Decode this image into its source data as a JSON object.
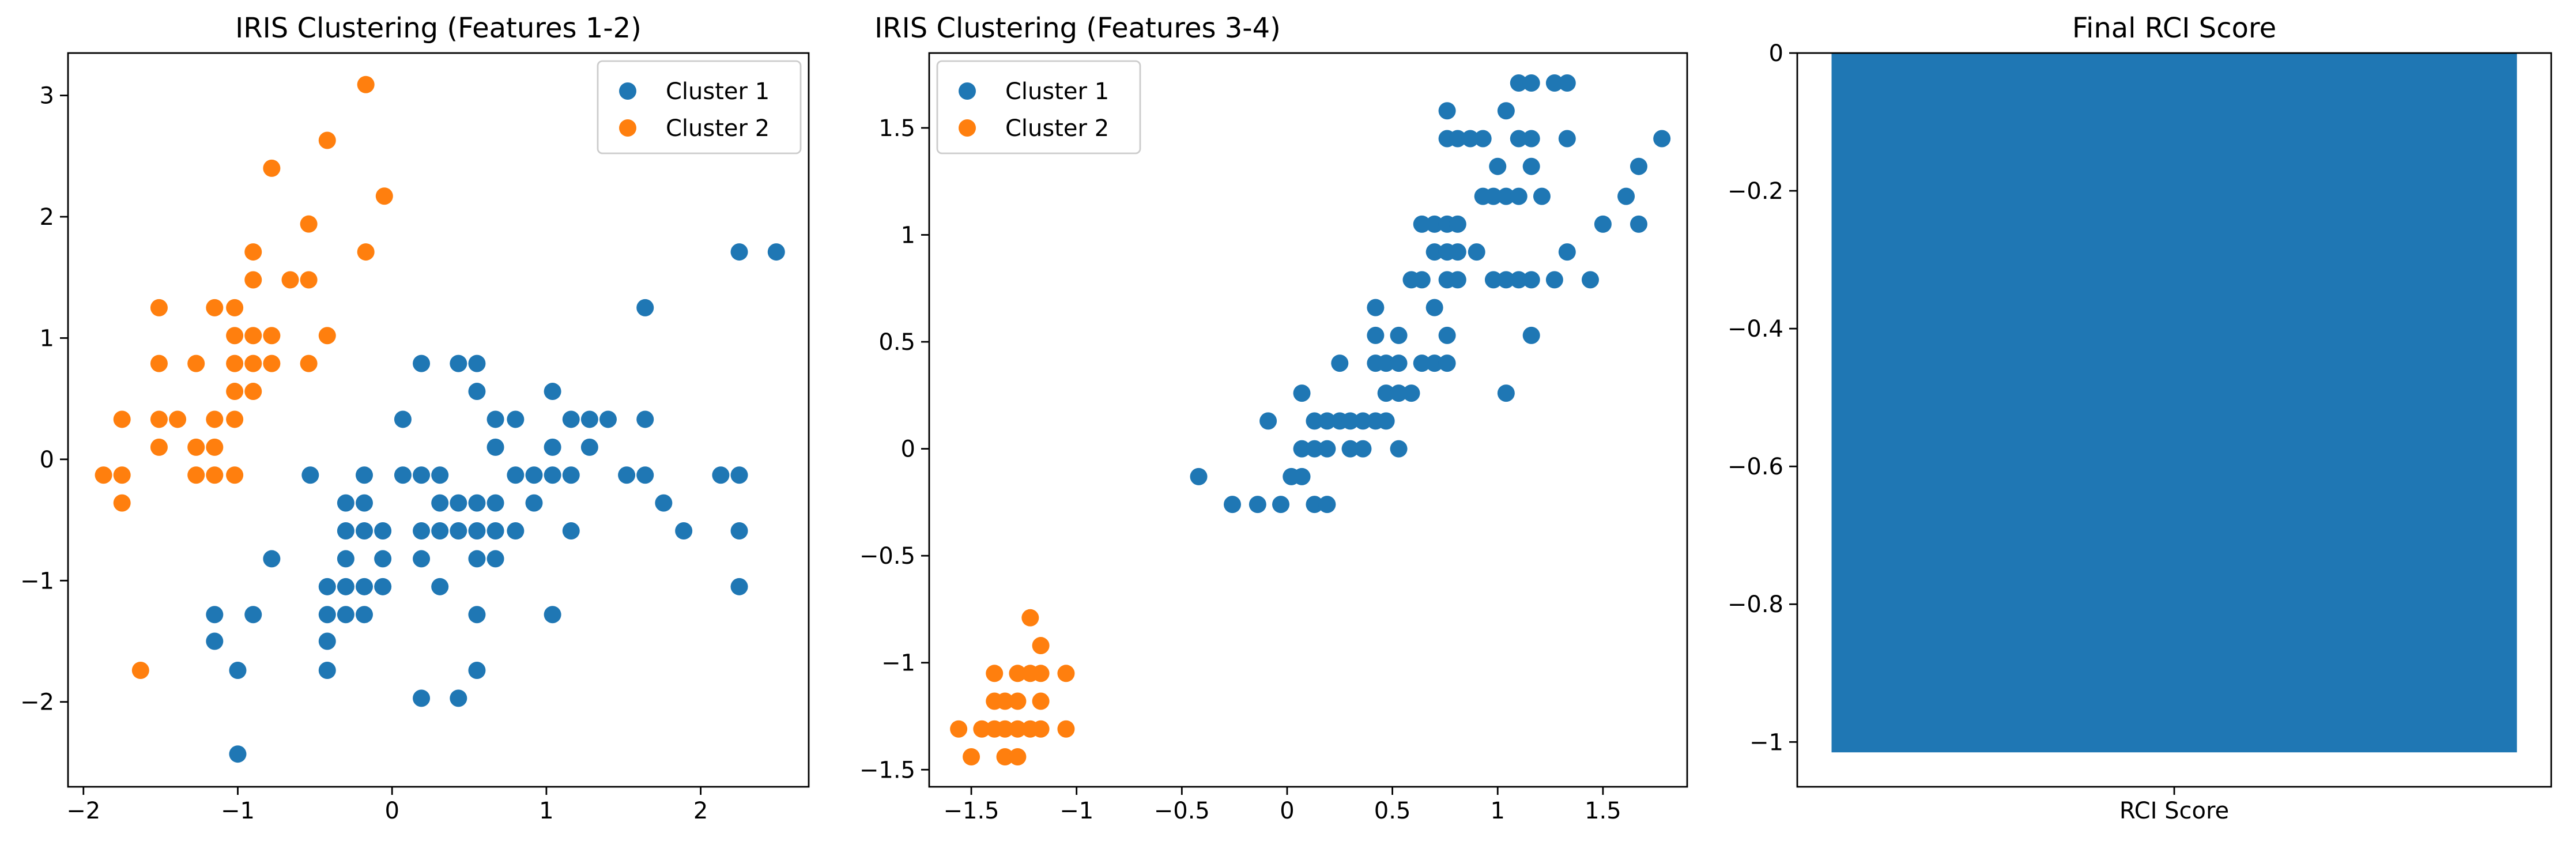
{
  "chart_data": [
    {
      "type": "scatter",
      "title": "IRIS Clustering (Features 1-2)",
      "xlabel": "",
      "ylabel": "",
      "xlim": [
        -2.1,
        2.7
      ],
      "ylim": [
        -2.7,
        3.35
      ],
      "xticks": [
        -2,
        -1,
        0,
        1,
        2
      ],
      "yticks": [
        -2,
        -1,
        0,
        1,
        2,
        3
      ],
      "legend": "top-right",
      "grid": false,
      "series": [
        {
          "name": "Cluster 1",
          "color": "#1f77b4",
          "points": [
            [
              -1.15,
              -1.28
            ],
            [
              -1.15,
              -1.5
            ],
            [
              -1.0,
              -1.74
            ],
            [
              -1.0,
              -2.43
            ],
            [
              -0.9,
              -1.28
            ],
            [
              -0.78,
              -0.82
            ],
            [
              -0.53,
              -0.13
            ],
            [
              -0.42,
              -1.05
            ],
            [
              -0.42,
              -1.28
            ],
            [
              -0.42,
              -1.5
            ],
            [
              -0.42,
              -1.74
            ],
            [
              -0.3,
              -0.36
            ],
            [
              -0.3,
              -0.59
            ],
            [
              -0.3,
              -0.82
            ],
            [
              -0.3,
              -1.05
            ],
            [
              -0.3,
              -1.28
            ],
            [
              -0.18,
              -0.13
            ],
            [
              -0.18,
              -0.36
            ],
            [
              -0.18,
              -0.59
            ],
            [
              -0.18,
              -1.05
            ],
            [
              -0.18,
              -1.28
            ],
            [
              -0.06,
              -0.59
            ],
            [
              -0.06,
              -0.82
            ],
            [
              -0.06,
              -1.05
            ],
            [
              0.07,
              -0.13
            ],
            [
              0.07,
              0.33
            ],
            [
              0.19,
              0.79
            ],
            [
              0.19,
              -0.13
            ],
            [
              0.19,
              -0.59
            ],
            [
              0.19,
              -0.82
            ],
            [
              0.19,
              -1.97
            ],
            [
              0.31,
              -0.13
            ],
            [
              0.31,
              -0.36
            ],
            [
              0.31,
              -0.59
            ],
            [
              0.31,
              -1.05
            ],
            [
              0.43,
              0.79
            ],
            [
              0.43,
              -0.36
            ],
            [
              0.43,
              -0.59
            ],
            [
              0.43,
              -1.97
            ],
            [
              0.55,
              0.79
            ],
            [
              0.55,
              0.56
            ],
            [
              0.55,
              -0.36
            ],
            [
              0.55,
              -0.59
            ],
            [
              0.55,
              -0.82
            ],
            [
              0.55,
              -1.28
            ],
            [
              0.55,
              -1.74
            ],
            [
              0.67,
              0.33
            ],
            [
              0.67,
              0.1
            ],
            [
              0.67,
              -0.36
            ],
            [
              0.67,
              -0.59
            ],
            [
              0.67,
              -0.82
            ],
            [
              0.8,
              0.33
            ],
            [
              0.8,
              -0.13
            ],
            [
              0.8,
              -0.59
            ],
            [
              0.92,
              -0.13
            ],
            [
              0.92,
              -0.36
            ],
            [
              1.04,
              0.56
            ],
            [
              1.04,
              0.1
            ],
            [
              1.04,
              -0.13
            ],
            [
              1.04,
              -1.28
            ],
            [
              1.16,
              0.33
            ],
            [
              1.16,
              -0.13
            ],
            [
              1.16,
              -0.59
            ],
            [
              1.28,
              0.33
            ],
            [
              1.28,
              0.1
            ],
            [
              1.4,
              0.33
            ],
            [
              1.52,
              -0.13
            ],
            [
              1.64,
              1.25
            ],
            [
              1.64,
              0.33
            ],
            [
              1.64,
              -0.13
            ],
            [
              1.76,
              -0.36
            ],
            [
              1.89,
              -0.59
            ],
            [
              2.13,
              -0.13
            ],
            [
              2.25,
              1.71
            ],
            [
              2.25,
              -0.13
            ],
            [
              2.25,
              -0.59
            ],
            [
              2.25,
              -1.05
            ],
            [
              2.49,
              1.71
            ]
          ]
        },
        {
          "name": "Cluster 2",
          "color": "#ff7f0e",
          "points": [
            [
              -1.87,
              -0.13
            ],
            [
              -1.75,
              0.33
            ],
            [
              -1.75,
              -0.13
            ],
            [
              -1.75,
              -0.36
            ],
            [
              -1.63,
              -1.74
            ],
            [
              -1.51,
              1.25
            ],
            [
              -1.51,
              0.79
            ],
            [
              -1.51,
              0.33
            ],
            [
              -1.51,
              0.1
            ],
            [
              -1.39,
              0.33
            ],
            [
              -1.27,
              0.79
            ],
            [
              -1.27,
              0.1
            ],
            [
              -1.27,
              -0.13
            ],
            [
              -1.15,
              1.25
            ],
            [
              -1.15,
              0.33
            ],
            [
              -1.15,
              0.1
            ],
            [
              -1.15,
              -0.13
            ],
            [
              -1.02,
              1.25
            ],
            [
              -1.02,
              1.02
            ],
            [
              -1.02,
              0.79
            ],
            [
              -1.02,
              0.56
            ],
            [
              -1.02,
              0.33
            ],
            [
              -1.02,
              -0.13
            ],
            [
              -0.9,
              1.71
            ],
            [
              -0.9,
              1.48
            ],
            [
              -0.9,
              1.02
            ],
            [
              -0.9,
              0.79
            ],
            [
              -0.9,
              0.56
            ],
            [
              -0.78,
              2.4
            ],
            [
              -0.78,
              1.02
            ],
            [
              -0.78,
              0.79
            ],
            [
              -0.66,
              1.48
            ],
            [
              -0.54,
              1.94
            ],
            [
              -0.54,
              1.48
            ],
            [
              -0.54,
              0.79
            ],
            [
              -0.42,
              2.63
            ],
            [
              -0.42,
              1.02
            ],
            [
              -0.17,
              3.09
            ],
            [
              -0.17,
              1.71
            ],
            [
              -0.05,
              2.17
            ]
          ]
        }
      ]
    },
    {
      "type": "scatter",
      "title": "IRIS Clustering (Features 3-4)",
      "xlabel": "",
      "ylabel": "",
      "xlim": [
        -1.7,
        1.9
      ],
      "ylim": [
        -1.58,
        1.85
      ],
      "xticks": [
        -1.5,
        -1.0,
        -0.5,
        0.0,
        0.5,
        1.0,
        1.5
      ],
      "yticks": [
        -1.5,
        -1.0,
        -0.5,
        0.0,
        0.5,
        1.0,
        1.5
      ],
      "legend": "top-left",
      "grid": false,
      "series": [
        {
          "name": "Cluster 1",
          "color": "#1f77b4",
          "points": [
            [
              -0.42,
              -0.13
            ],
            [
              -0.26,
              -0.26
            ],
            [
              -0.14,
              -0.26
            ],
            [
              -0.09,
              0.13
            ],
            [
              -0.03,
              -0.26
            ],
            [
              0.02,
              -0.13
            ],
            [
              0.07,
              -0.13
            ],
            [
              0.07,
              0.0
            ],
            [
              0.07,
              0.26
            ],
            [
              0.13,
              0.0
            ],
            [
              0.13,
              0.13
            ],
            [
              0.13,
              -0.26
            ],
            [
              0.19,
              -0.26
            ],
            [
              0.19,
              0.0
            ],
            [
              0.19,
              0.13
            ],
            [
              0.25,
              0.13
            ],
            [
              0.25,
              0.4
            ],
            [
              0.3,
              0.0
            ],
            [
              0.3,
              0.13
            ],
            [
              0.36,
              0.0
            ],
            [
              0.36,
              0.13
            ],
            [
              0.42,
              0.13
            ],
            [
              0.42,
              0.4
            ],
            [
              0.42,
              0.53
            ],
            [
              0.42,
              0.66
            ],
            [
              0.47,
              0.13
            ],
            [
              0.47,
              0.26
            ],
            [
              0.47,
              0.4
            ],
            [
              0.53,
              0.0
            ],
            [
              0.53,
              0.26
            ],
            [
              0.53,
              0.4
            ],
            [
              0.53,
              0.53
            ],
            [
              0.59,
              0.26
            ],
            [
              0.59,
              0.79
            ],
            [
              0.64,
              0.4
            ],
            [
              0.64,
              0.79
            ],
            [
              0.64,
              1.05
            ],
            [
              0.7,
              0.4
            ],
            [
              0.7,
              0.66
            ],
            [
              0.7,
              0.92
            ],
            [
              0.7,
              1.05
            ],
            [
              0.76,
              0.4
            ],
            [
              0.76,
              0.53
            ],
            [
              0.76,
              0.79
            ],
            [
              0.76,
              0.92
            ],
            [
              0.76,
              1.05
            ],
            [
              0.76,
              1.45
            ],
            [
              0.76,
              1.58
            ],
            [
              0.81,
              0.79
            ],
            [
              0.81,
              0.92
            ],
            [
              0.81,
              1.05
            ],
            [
              0.81,
              1.45
            ],
            [
              0.87,
              1.45
            ],
            [
              0.9,
              0.92
            ],
            [
              0.93,
              1.18
            ],
            [
              0.93,
              1.45
            ],
            [
              0.98,
              0.79
            ],
            [
              0.98,
              1.18
            ],
            [
              1.0,
              1.32
            ],
            [
              1.04,
              0.26
            ],
            [
              1.04,
              0.79
            ],
            [
              1.04,
              1.18
            ],
            [
              1.04,
              1.58
            ],
            [
              1.1,
              0.79
            ],
            [
              1.1,
              1.18
            ],
            [
              1.1,
              1.45
            ],
            [
              1.1,
              1.71
            ],
            [
              1.16,
              0.53
            ],
            [
              1.16,
              0.79
            ],
            [
              1.16,
              1.32
            ],
            [
              1.16,
              1.45
            ],
            [
              1.16,
              1.71
            ],
            [
              1.21,
              1.18
            ],
            [
              1.27,
              0.79
            ],
            [
              1.27,
              1.71
            ],
            [
              1.33,
              0.92
            ],
            [
              1.33,
              1.45
            ],
            [
              1.33,
              1.71
            ],
            [
              1.44,
              0.79
            ],
            [
              1.5,
              1.05
            ],
            [
              1.61,
              1.18
            ],
            [
              1.67,
              1.32
            ],
            [
              1.67,
              1.05
            ],
            [
              1.78,
              1.45
            ]
          ]
        },
        {
          "name": "Cluster 2",
          "color": "#ff7f0e",
          "points": [
            [
              -1.56,
              -1.31
            ],
            [
              -1.5,
              -1.44
            ],
            [
              -1.45,
              -1.31
            ],
            [
              -1.39,
              -1.05
            ],
            [
              -1.39,
              -1.18
            ],
            [
              -1.39,
              -1.31
            ],
            [
              -1.34,
              -1.18
            ],
            [
              -1.34,
              -1.31
            ],
            [
              -1.34,
              -1.44
            ],
            [
              -1.28,
              -1.05
            ],
            [
              -1.28,
              -1.18
            ],
            [
              -1.28,
              -1.31
            ],
            [
              -1.28,
              -1.44
            ],
            [
              -1.22,
              -0.79
            ],
            [
              -1.22,
              -1.05
            ],
            [
              -1.22,
              -1.31
            ],
            [
              -1.17,
              -0.92
            ],
            [
              -1.17,
              -1.05
            ],
            [
              -1.17,
              -1.18
            ],
            [
              -1.17,
              -1.31
            ],
            [
              -1.05,
              -1.05
            ],
            [
              -1.05,
              -1.31
            ]
          ]
        }
      ]
    },
    {
      "type": "bar",
      "title": "Final RCI Score",
      "categories": [
        "RCI Score"
      ],
      "values": [
        -1.015
      ],
      "color": "#1f77b4",
      "ylim": [
        -1.065,
        0.0
      ],
      "yticks": [
        -1.0,
        -0.8,
        -0.6,
        -0.4,
        -0.2,
        0.0
      ],
      "xlabel": "",
      "ylabel": "",
      "grid": false
    }
  ]
}
